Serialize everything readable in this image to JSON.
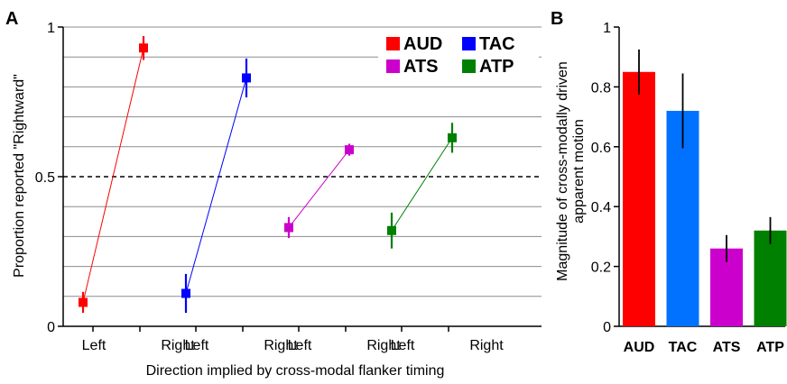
{
  "chart_data": [
    {
      "panel_label": "A",
      "type": "line",
      "ylabel": "Proportion reported \"Rightward\"",
      "xlabel": "Direction implied by cross-modal flanker timing",
      "ylim": [
        0,
        1
      ],
      "yticks": [
        0,
        0.5,
        1
      ],
      "ytick_labels": [
        "0",
        "0.5",
        "1"
      ],
      "reference_line": 0.5,
      "categories": [
        "Left",
        "Right",
        "Left",
        "Right",
        "Left",
        "Right",
        "Left",
        "Right"
      ],
      "grid": "horizontal",
      "legend": "top-right",
      "series": [
        {
          "name": "AUD",
          "color": "#ff0000",
          "points": [
            {
              "category_index": 0,
              "y": 0.08,
              "err": 0.035
            },
            {
              "category_index": 1,
              "y": 0.93,
              "err": 0.04
            }
          ]
        },
        {
          "name": "TAC",
          "color": "#0000ff",
          "points": [
            {
              "category_index": 2,
              "y": 0.11,
              "err": 0.065
            },
            {
              "category_index": 3,
              "y": 0.83,
              "err": 0.065
            }
          ]
        },
        {
          "name": "ATS",
          "color": "#cc00cc",
          "points": [
            {
              "category_index": 4,
              "y": 0.33,
              "err": 0.035
            },
            {
              "category_index": 5,
              "y": 0.59,
              "err": 0.02
            }
          ]
        },
        {
          "name": "ATP",
          "color": "#008000",
          "points": [
            {
              "category_index": 6,
              "y": 0.32,
              "err": 0.06
            },
            {
              "category_index": 7,
              "y": 0.63,
              "err": 0.05
            }
          ]
        }
      ]
    },
    {
      "panel_label": "B",
      "type": "bar",
      "ylabel_lines": [
        "Magnitude of cross-modally driven",
        "apparent motion"
      ],
      "ylim": [
        0,
        1
      ],
      "yticks": [
        0,
        0.2,
        0.4,
        0.6,
        0.8,
        1
      ],
      "ytick_labels": [
        "0",
        "0.2",
        "0.4",
        "0.6",
        "0.8",
        "1"
      ],
      "categories": [
        "AUD",
        "TAC",
        "ATS",
        "ATP"
      ],
      "values": [
        0.85,
        0.72,
        0.26,
        0.32
      ],
      "errors": [
        0.075,
        0.125,
        0.045,
        0.045
      ],
      "colors": [
        "#ff0000",
        "#0072ff",
        "#cc00cc",
        "#008000"
      ]
    }
  ]
}
